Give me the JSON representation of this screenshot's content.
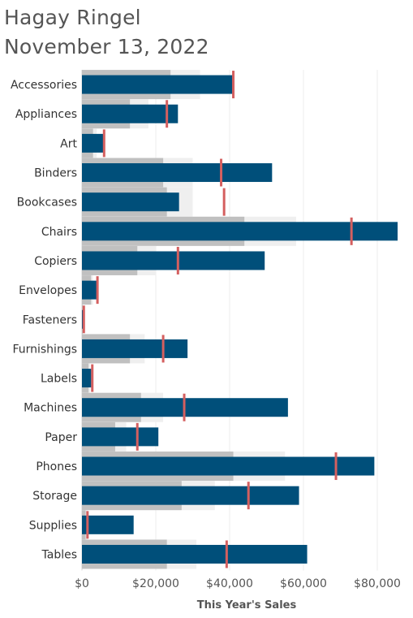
{
  "title_line1": "Hagay Ringel",
  "title_line2": "November 13, 2022",
  "chart_data": {
    "type": "bar",
    "orientation": "horizontal",
    "xlabel": "This Year's Sales",
    "ylabel": "",
    "xlim": [
      0,
      85000
    ],
    "x_ticks": [
      "$0",
      "$20,000",
      "$40,000",
      "$60,000",
      "$80,000"
    ],
    "x_tick_values": [
      0,
      20000,
      40000,
      60000,
      80000
    ],
    "grid": true,
    "categories": [
      "Accessories",
      "Appliances",
      "Art",
      "Binders",
      "Bookcases",
      "Chairs",
      "Copiers",
      "Envelopes",
      "Fasteners",
      "Furnishings",
      "Labels",
      "Machines",
      "Paper",
      "Phones",
      "Storage",
      "Supplies",
      "Tables"
    ],
    "series": [
      {
        "values": [
          41000,
          26000,
          5800,
          51500,
          26300,
          85500,
          49500,
          4300,
          300,
          28600,
          2500,
          55800,
          20700,
          79200,
          58800,
          14000,
          61000
        ]
      },
      {
        "values": [
          41000,
          23000,
          6000,
          37700,
          38500,
          73000,
          26000,
          4200,
          500,
          22000,
          2800,
          27700,
          15000,
          68800,
          45100,
          1500,
          39200
        ]
      },
      {
        "values": [
          24000,
          13000,
          3000,
          22000,
          23000,
          44000,
          15000,
          2500,
          200,
          13000,
          1800,
          16000,
          9000,
          41000,
          27000,
          1000,
          23000
        ]
      },
      {
        "values": [
          32000,
          18000,
          4000,
          30000,
          30000,
          58000,
          20000,
          3000,
          300,
          17000,
          2200,
          22000,
          12000,
          55000,
          36000,
          1500,
          31000
        ]
      }
    ],
    "colors": {
      "bar": "#004f7a",
      "reference": "#d45f5f",
      "band_dark": "#c0c0c0",
      "band_light": "#efefef",
      "grid": "#ececec"
    }
  }
}
